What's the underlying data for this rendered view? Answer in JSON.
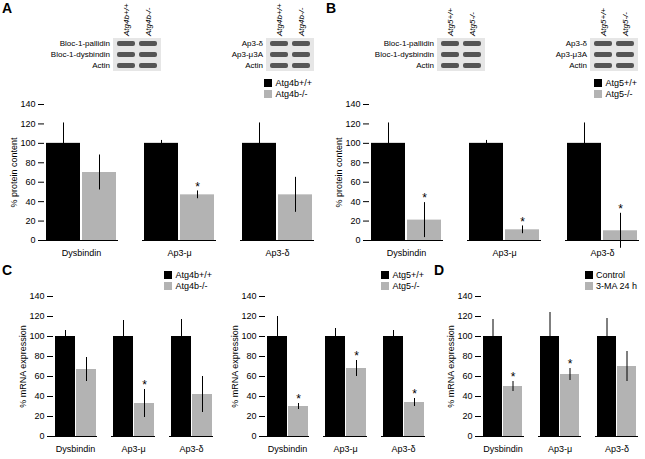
{
  "chart_data": [
    {
      "type": "bar",
      "panel": "A",
      "blots": [
        {
          "lanes": [
            "Atg4b+/+",
            "Atg4b-/-"
          ],
          "rows": [
            "Bloc-1-pallidin",
            "Bloc-1-dysbindin",
            "Actin"
          ]
        },
        {
          "lanes": [
            "Atg4b+/+",
            "Atg4b-/-"
          ],
          "rows": [
            "Ap3-δ",
            "Ap3-μ3A",
            "Actin"
          ]
        }
      ],
      "categories": [
        "Dysbindin",
        "Ap3-μ",
        "Ap3-δ"
      ],
      "y_label": "% protein content",
      "ylim": [
        0,
        140
      ],
      "yticks": [
        0,
        20,
        40,
        60,
        80,
        100,
        120,
        140
      ],
      "legend": "top-right",
      "series": [
        {
          "name": "Atg4b+/+",
          "color": "#000000",
          "values": [
            100,
            100,
            100
          ],
          "errors": [
            21,
            3,
            21
          ]
        },
        {
          "name": "Atg4b-/-",
          "color": "#b3b3b3",
          "values": [
            70,
            47,
            47
          ],
          "errors": [
            18,
            4,
            18
          ],
          "significance": [
            null,
            "*",
            null
          ]
        }
      ]
    },
    {
      "type": "bar",
      "panel": "B",
      "blots": [
        {
          "lanes": [
            "Atg5+/+",
            "Atg5-/-"
          ],
          "rows": [
            "Bloc-1-pallidin",
            "Bloc-1-dysbindin",
            "Actin"
          ]
        },
        {
          "lanes": [
            "Atg5+/+",
            "Atg5-/-"
          ],
          "rows": [
            "Ap3-δ",
            "Ap3-μ3A",
            "Actin"
          ]
        }
      ],
      "categories": [
        "Dysbindin",
        "Ap3-μ",
        "Ap3-δ"
      ],
      "y_label": "% protein content",
      "ylim": [
        0,
        140
      ],
      "yticks": [
        0,
        20,
        40,
        60,
        80,
        100,
        120,
        140
      ],
      "legend": "top-right",
      "series": [
        {
          "name": "Atg5+/+",
          "color": "#000000",
          "values": [
            100,
            100,
            100
          ],
          "errors": [
            21,
            3,
            21
          ]
        },
        {
          "name": "Atg5-/-",
          "color": "#b3b3b3",
          "values": [
            21,
            11,
            10
          ],
          "errors": [
            18,
            4,
            18
          ],
          "significance": [
            "*",
            "*",
            "*"
          ]
        }
      ]
    },
    {
      "type": "bar",
      "panel": "C",
      "categories": [
        "Dysbindin",
        "Ap3-μ",
        "Ap3-δ"
      ],
      "y_label": "% mRNA expression",
      "ylim": [
        0,
        140
      ],
      "yticks": [
        0,
        20,
        40,
        60,
        80,
        100,
        120,
        140
      ],
      "legend": "top-right",
      "series": [
        {
          "name": "Atg4b+/+",
          "color": "#000000",
          "values": [
            100,
            100,
            100
          ],
          "errors": [
            6,
            16,
            17
          ]
        },
        {
          "name": "Atg4b-/-",
          "color": "#b3b3b3",
          "values": [
            67,
            33,
            42
          ],
          "errors": [
            12,
            14,
            18
          ],
          "significance": [
            null,
            "*",
            null
          ]
        }
      ]
    },
    {
      "type": "bar",
      "categories": [
        "Dysbindin",
        "Ap3-μ",
        "Ap3-δ"
      ],
      "y_label": "% mRNA expression",
      "ylim": [
        0,
        140
      ],
      "yticks": [
        0,
        20,
        40,
        60,
        80,
        100,
        120,
        140
      ],
      "legend": "top-right",
      "series": [
        {
          "name": "Atg5+/+",
          "color": "#000000",
          "values": [
            100,
            100,
            100
          ],
          "errors": [
            20,
            8,
            6
          ]
        },
        {
          "name": "Atg5-/-",
          "color": "#b3b3b3",
          "values": [
            30,
            68,
            34
          ],
          "errors": [
            3,
            8,
            4
          ],
          "significance": [
            "*",
            "*",
            "*"
          ]
        }
      ]
    },
    {
      "type": "bar",
      "panel": "D",
      "categories": [
        "Dysbindin",
        "Ap3-μ",
        "Ap3-δ"
      ],
      "y_label": "% mRNA expression",
      "ylim": [
        0,
        140
      ],
      "yticks": [
        0,
        20,
        40,
        60,
        80,
        100,
        120,
        140
      ],
      "legend": "top-right",
      "series": [
        {
          "name": "Control",
          "color": "#000000",
          "values": [
            100,
            100,
            100
          ],
          "errors": [
            17,
            24,
            18
          ]
        },
        {
          "name": "3-MA 24 h",
          "color": "#b3b3b3",
          "values": [
            50,
            62,
            70
          ],
          "errors": [
            5,
            6,
            15
          ],
          "significance": [
            "*",
            "*",
            null
          ]
        }
      ]
    }
  ]
}
